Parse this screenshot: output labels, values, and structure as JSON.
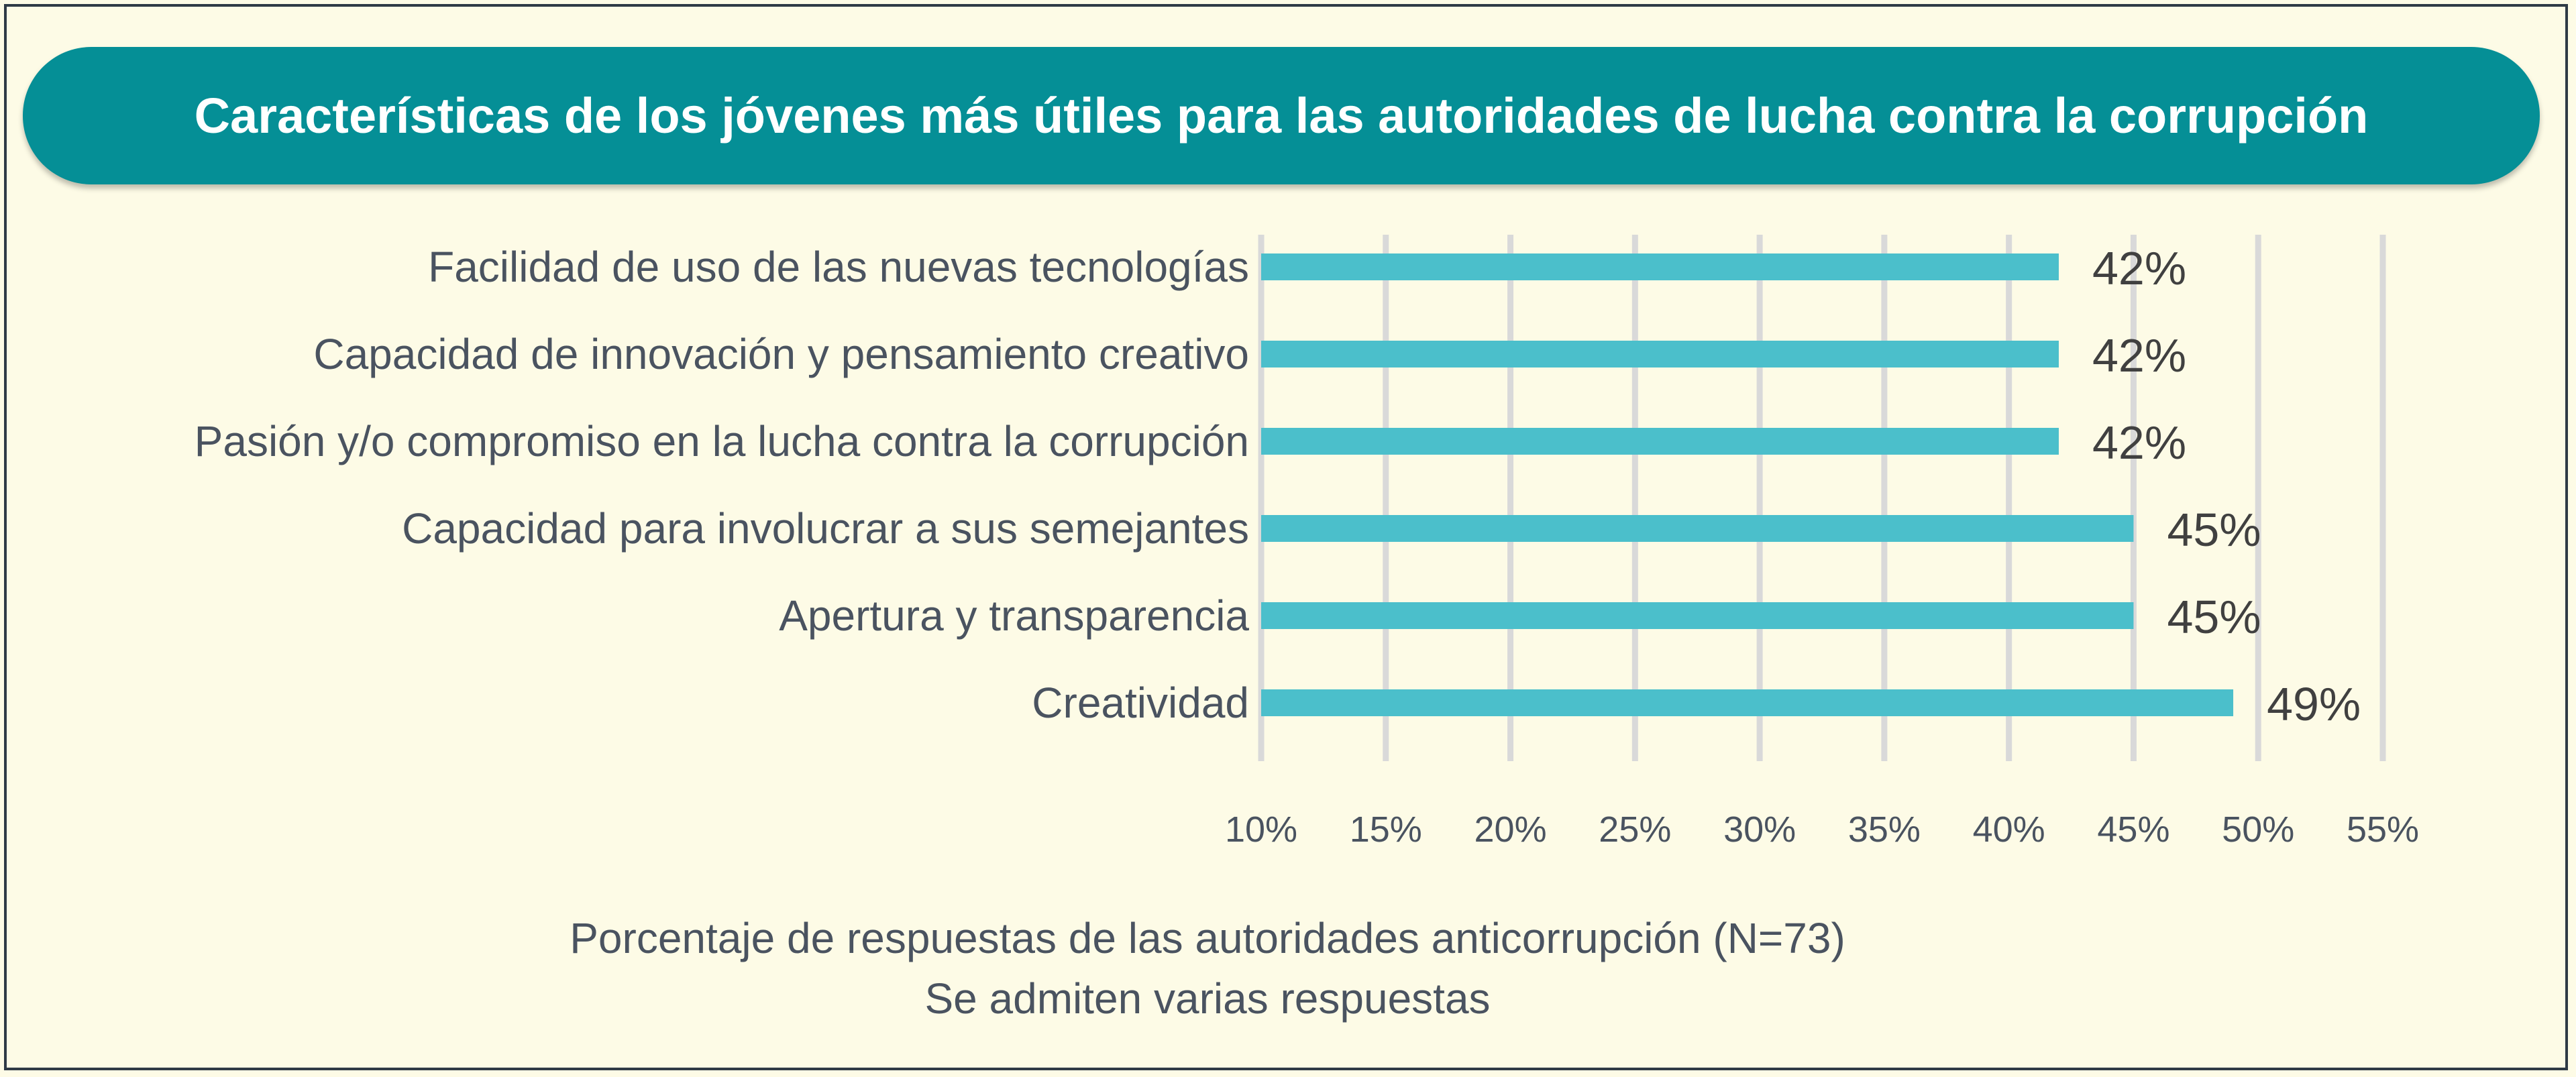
{
  "chart_data": {
    "type": "bar",
    "orientation": "horizontal",
    "title": "Características de los jóvenes más útiles para las autoridades de lucha contra la corrupción",
    "categories": [
      "Facilidad de uso de las nuevas tecnologías",
      "Capacidad de innovación y pensamiento creativo",
      "Pasión y/o compromiso en la lucha contra la corrupción",
      "Capacidad para involucrar a sus semejantes",
      "Apertura y transparencia",
      "Creatividad"
    ],
    "values": [
      42,
      42,
      42,
      45,
      45,
      49
    ],
    "value_labels": [
      "42%",
      "42%",
      "42%",
      "45%",
      "45%",
      "49%"
    ],
    "xlim": [
      10,
      55
    ],
    "xticks": [
      10,
      15,
      20,
      25,
      30,
      35,
      40,
      45,
      50,
      55
    ],
    "xtick_labels": [
      "10%",
      "15%",
      "20%",
      "25%",
      "30%",
      "35%",
      "40%",
      "45%",
      "50%",
      "55%"
    ],
    "grid": true,
    "bar_color": "#4bbfcb",
    "grid_color": "#d9d9d9",
    "xlabel": "Porcentaje de respuestas de las autoridades anticorrupción (N=73)",
    "note": "Se admiten varias respuestas"
  }
}
